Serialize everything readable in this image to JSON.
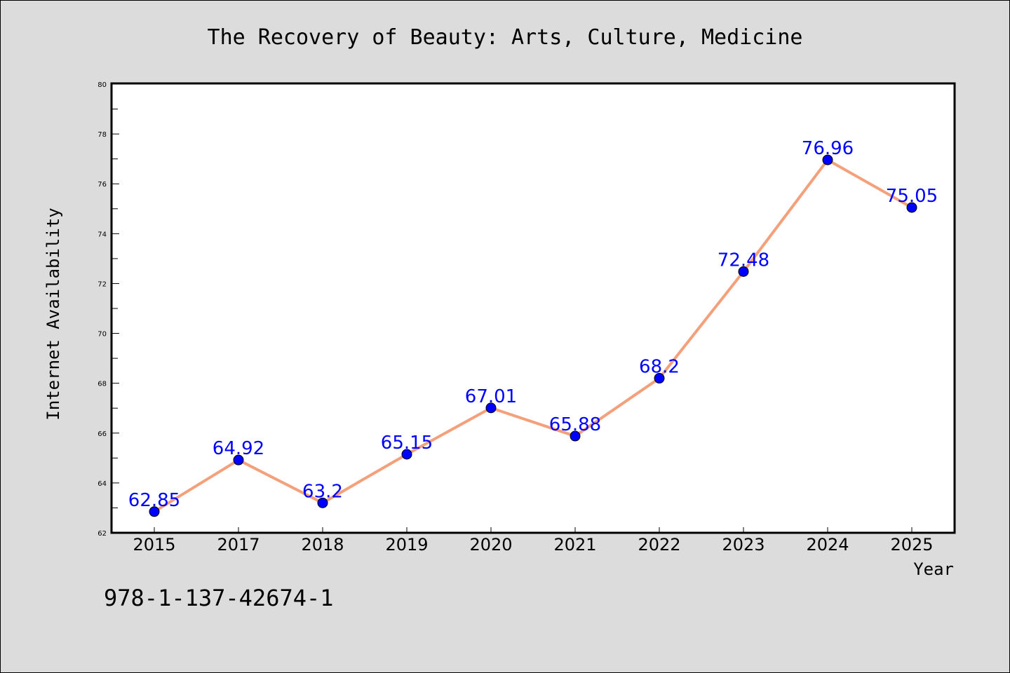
{
  "isbn_text": "978-1-137-42674-1",
  "colors": {
    "background": "#dcdcdc",
    "plot_background": "#ffffff",
    "line": "#f4a07a",
    "marker": "#0000ff",
    "data_label": "#0000ff"
  },
  "chart_data": {
    "type": "line",
    "title": "The Recovery of Beauty: Arts, Culture, Medicine",
    "xlabel": "Year",
    "ylabel": "Internet Availability",
    "categories": [
      "2015",
      "2017",
      "2018",
      "2019",
      "2020",
      "2021",
      "2022",
      "2023",
      "2024",
      "2025"
    ],
    "series": [
      {
        "values": [
          62.85,
          64.92,
          63.2,
          65.15,
          67.01,
          65.88,
          68.2,
          72.48,
          76.96,
          75.05
        ],
        "labels": [
          "62.85",
          "64.92",
          "63.2",
          "65.15",
          "67.01",
          "65.88",
          "68.2",
          "72.48",
          "76.96",
          "75.05"
        ]
      }
    ],
    "ylim": [
      62,
      80
    ],
    "yticks": [
      "62",
      "64",
      "66",
      "68",
      "70",
      "72",
      "74",
      "76",
      "78",
      "80"
    ],
    "grid": false,
    "legend": "none"
  }
}
